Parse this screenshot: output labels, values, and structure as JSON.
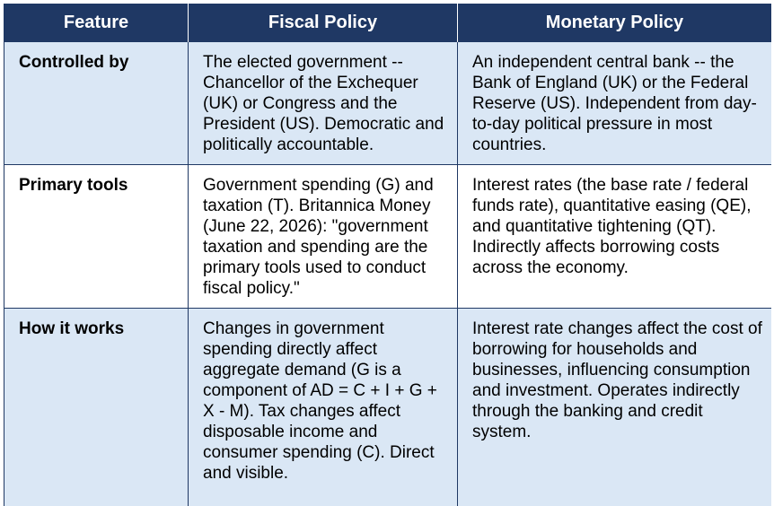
{
  "colors": {
    "header_bg": "#1f3864",
    "header_text": "#ffffff",
    "row_blue": "#dae7f5",
    "row_white": "#ffffff",
    "border": "#1f3864"
  },
  "table": {
    "headers": [
      "Feature",
      "Fiscal Policy",
      "Monetary Policy"
    ],
    "rows": [
      {
        "feature": "Controlled by",
        "fiscal": "The elected government -- Chancellor of the Exchequer (UK) or Congress and the President (US). Democratic and politically accountable.",
        "monetary": "An independent central bank -- the Bank of England (UK) or the Federal Reserve (US). Independent from day-to-day political pressure in most countries."
      },
      {
        "feature": "Primary tools",
        "fiscal": "Government spending (G) and taxation (T). Britannica Money (June 22, 2026): \"government taxation and spending are the primary tools used to conduct fiscal policy.\"",
        "monetary": "Interest rates (the base rate / federal funds rate), quantitative easing (QE), and quantitative tightening (QT). Indirectly affects borrowing costs across the economy."
      },
      {
        "feature": "How it works",
        "fiscal": "Changes in government spending directly affect aggregate demand (G is a component of AD = C + I + G + X - M). Tax changes affect disposable income and consumer spending (C). Direct and visible.",
        "monetary": "Interest rate changes affect the cost of borrowing for households and businesses, influencing consumption and investment. Operates indirectly through the banking and credit system."
      }
    ]
  }
}
